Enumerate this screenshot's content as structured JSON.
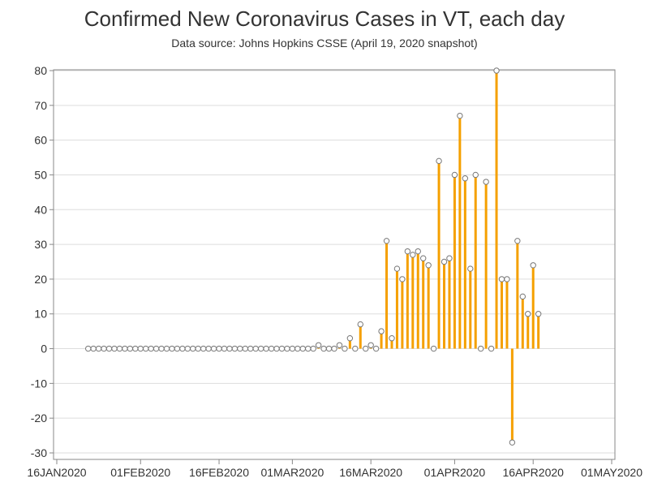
{
  "chart_data": {
    "type": "needle",
    "title": "Confirmed New Coronavirus Cases in VT, each day",
    "subtitle": "Data source: Johns Hopkins CSSE (April 19, 2020 snapshot)",
    "xlabel": "",
    "ylabel": "",
    "ylim": [
      -30,
      80
    ],
    "yticks": [
      -30,
      -20,
      -10,
      0,
      10,
      20,
      30,
      40,
      50,
      60,
      70,
      80
    ],
    "xlim": [
      "2020-01-16",
      "2020-05-01"
    ],
    "xticks": [
      "16JAN2020",
      "01FEB2020",
      "16FEB2020",
      "01MAR2020",
      "16MAR2020",
      "01APR2020",
      "16APR2020",
      "01MAY2020"
    ],
    "grid": true,
    "series": [
      {
        "start_date": "2020-01-22",
        "values": [
          0,
          0,
          0,
          0,
          0,
          0,
          0,
          0,
          0,
          0,
          0,
          0,
          0,
          0,
          0,
          0,
          0,
          0,
          0,
          0,
          0,
          0,
          0,
          0,
          0,
          0,
          0,
          0,
          0,
          0,
          0,
          0,
          0,
          0,
          0,
          0,
          0,
          0,
          0,
          0,
          0,
          0,
          0,
          0,
          1,
          0,
          0,
          0,
          1,
          0,
          3,
          0,
          7,
          0,
          1,
          0,
          5,
          31,
          3,
          23,
          20,
          28,
          27,
          28,
          26,
          24,
          0,
          54,
          25,
          26,
          50,
          67,
          49,
          23,
          50,
          0,
          48,
          0,
          80,
          20,
          20,
          -27,
          31,
          15,
          10,
          24,
          10
        ]
      }
    ],
    "colors": {
      "needle": "#f5a000",
      "marker_fill": "#ffffff",
      "marker_stroke": "#777777",
      "grid": "#dddddd",
      "axis": "#888888"
    }
  }
}
